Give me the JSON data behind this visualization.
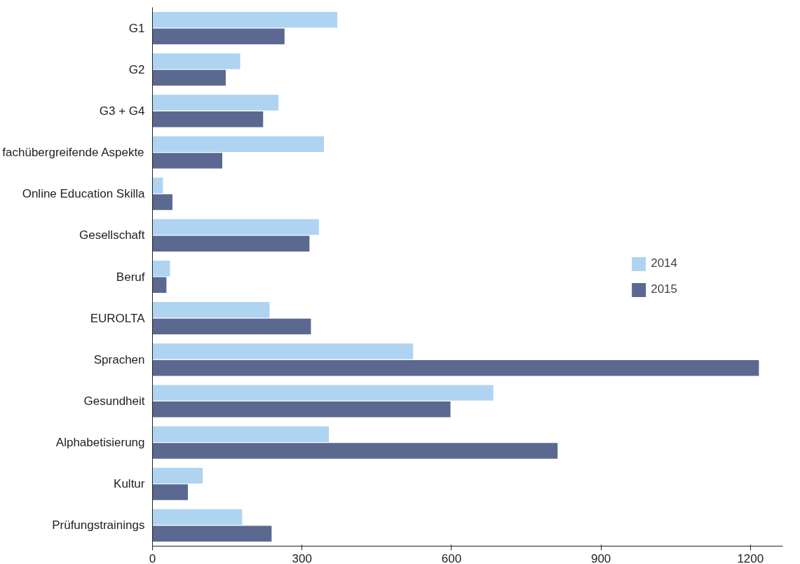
{
  "chart_data": {
    "type": "bar",
    "orientation": "horizontal",
    "categories": [
      "G1",
      "G2",
      "G3 + G4",
      "fachübergreifende Aspekte",
      "Online Education Skilla",
      "Gesellschaft",
      "Beruf",
      "EUROLTA",
      "Sprachen",
      "Gesundheit",
      "Alphabetisierung",
      "Kultur",
      "Prüfungstrainings"
    ],
    "series": [
      {
        "name": "2014",
        "color": "#aed4f2",
        "values": [
          371,
          176,
          253,
          344,
          21,
          334,
          35,
          235,
          523,
          684,
          354,
          101,
          180
        ]
      },
      {
        "name": "2015",
        "color": "#5b6990",
        "values": [
          265,
          147,
          222,
          140,
          40,
          315,
          28,
          318,
          1217,
          598,
          813,
          71,
          239
        ]
      }
    ],
    "xlim": [
      0,
      1265
    ],
    "xticks": [
      0,
      300,
      600,
      900,
      1200
    ],
    "grid": false,
    "legend": "right"
  }
}
